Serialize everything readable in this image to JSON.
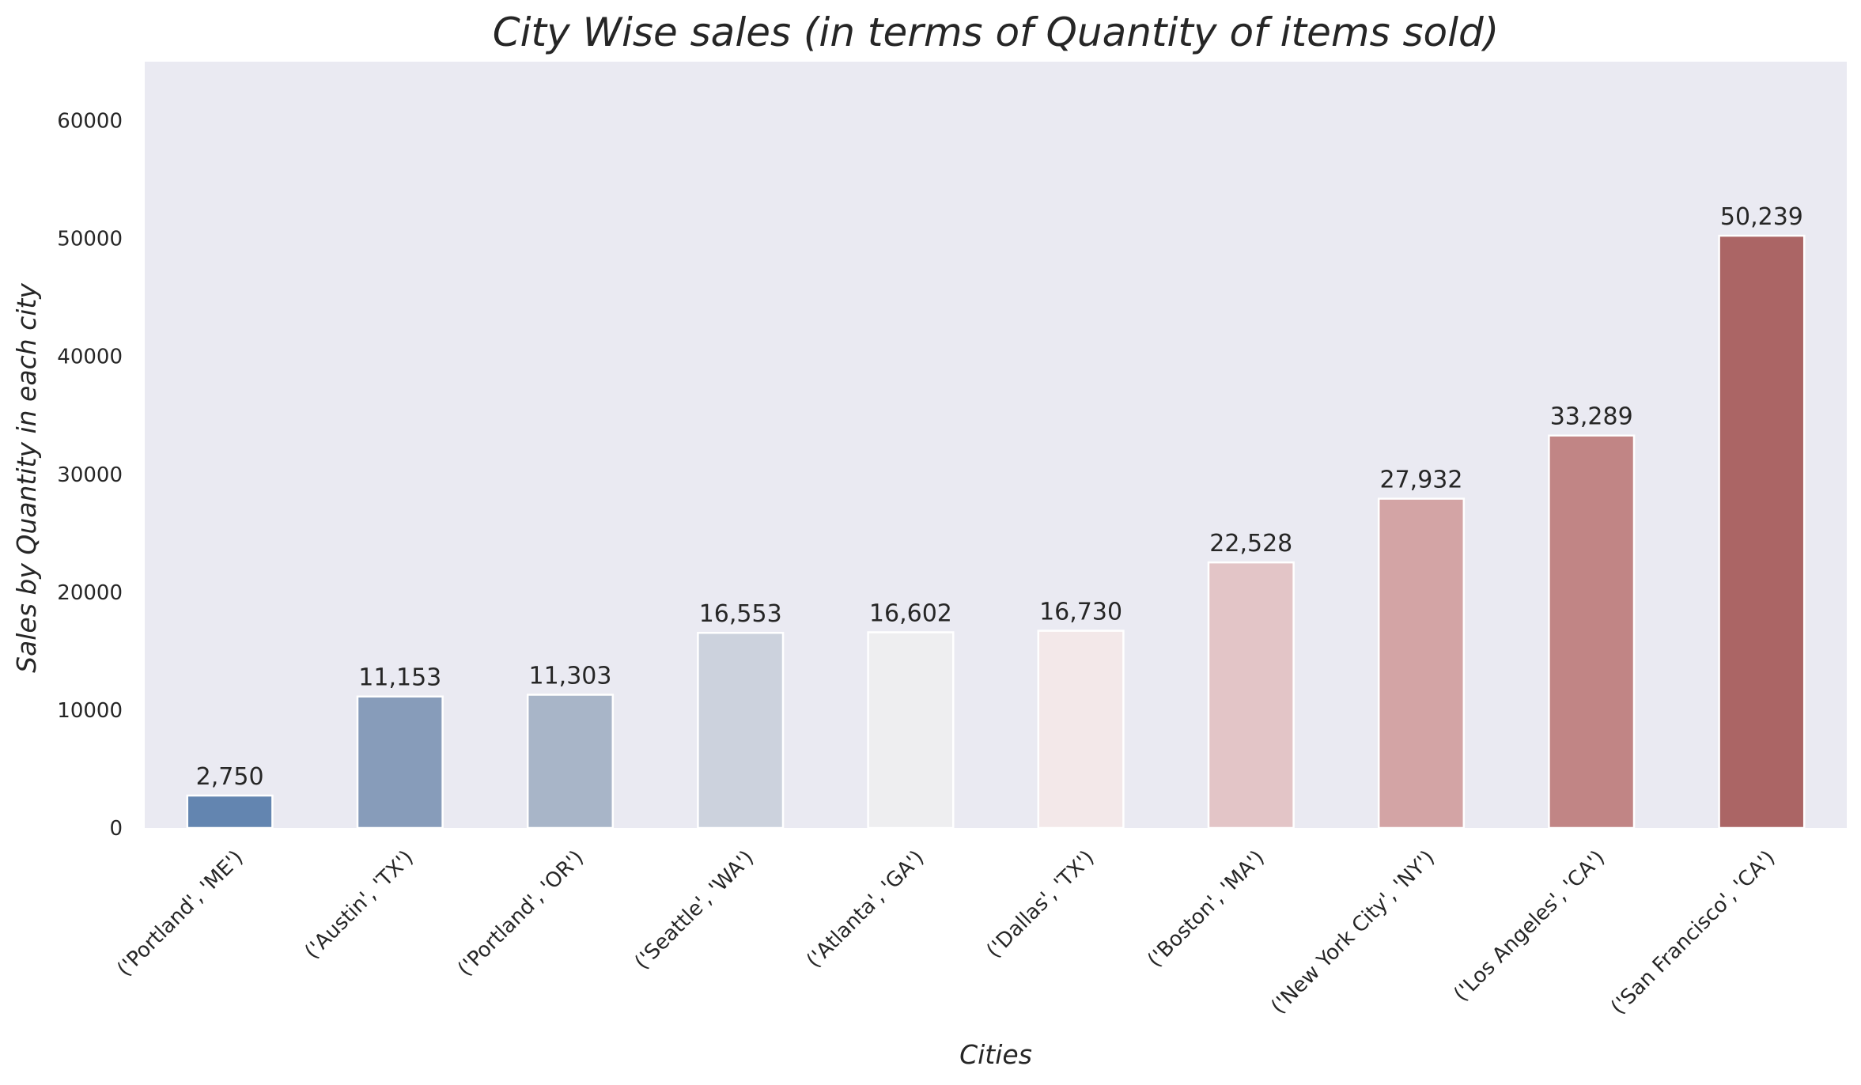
{
  "chart_data": {
    "type": "bar",
    "title": "City Wise sales (in terms of Quantity of items sold)",
    "xlabel": "Cities",
    "ylabel": "Sales by Quantity in each city",
    "categories": [
      "('Portland', 'ME')",
      "('Austin', 'TX')",
      "('Portland', 'OR')",
      "('Seattle', 'WA')",
      "('Atlanta', 'GA')",
      "('Dallas', 'TX')",
      "('Boston', 'MA')",
      "('New York City', 'NY')",
      "('Los Angeles', 'CA')",
      "('San Francisco', 'CA')"
    ],
    "values": [
      2750,
      11153,
      11303,
      16553,
      16602,
      16730,
      22528,
      27932,
      33289,
      50239
    ],
    "value_labels": [
      "2,750",
      "11,153",
      "11,303",
      "16,553",
      "16,602",
      "16,730",
      "22,528",
      "27,932",
      "33,289",
      "50,239"
    ],
    "ylim": [
      0,
      65000
    ],
    "yticks": [
      0,
      10000,
      20000,
      30000,
      40000,
      50000,
      60000
    ],
    "ytick_labels": [
      "0",
      "10000",
      "20000",
      "30000",
      "40000",
      "50000",
      "60000"
    ],
    "grid": false,
    "colors": {
      "background": "#eaeaf2",
      "bars": [
        "#6385b0",
        "#879cba",
        "#a8b5c8",
        "#ccd2dd",
        "#eeeef0",
        "#f3e8e9",
        "#e3c5c7",
        "#d3a4a5",
        "#c18585",
        "#ab6565"
      ]
    }
  }
}
